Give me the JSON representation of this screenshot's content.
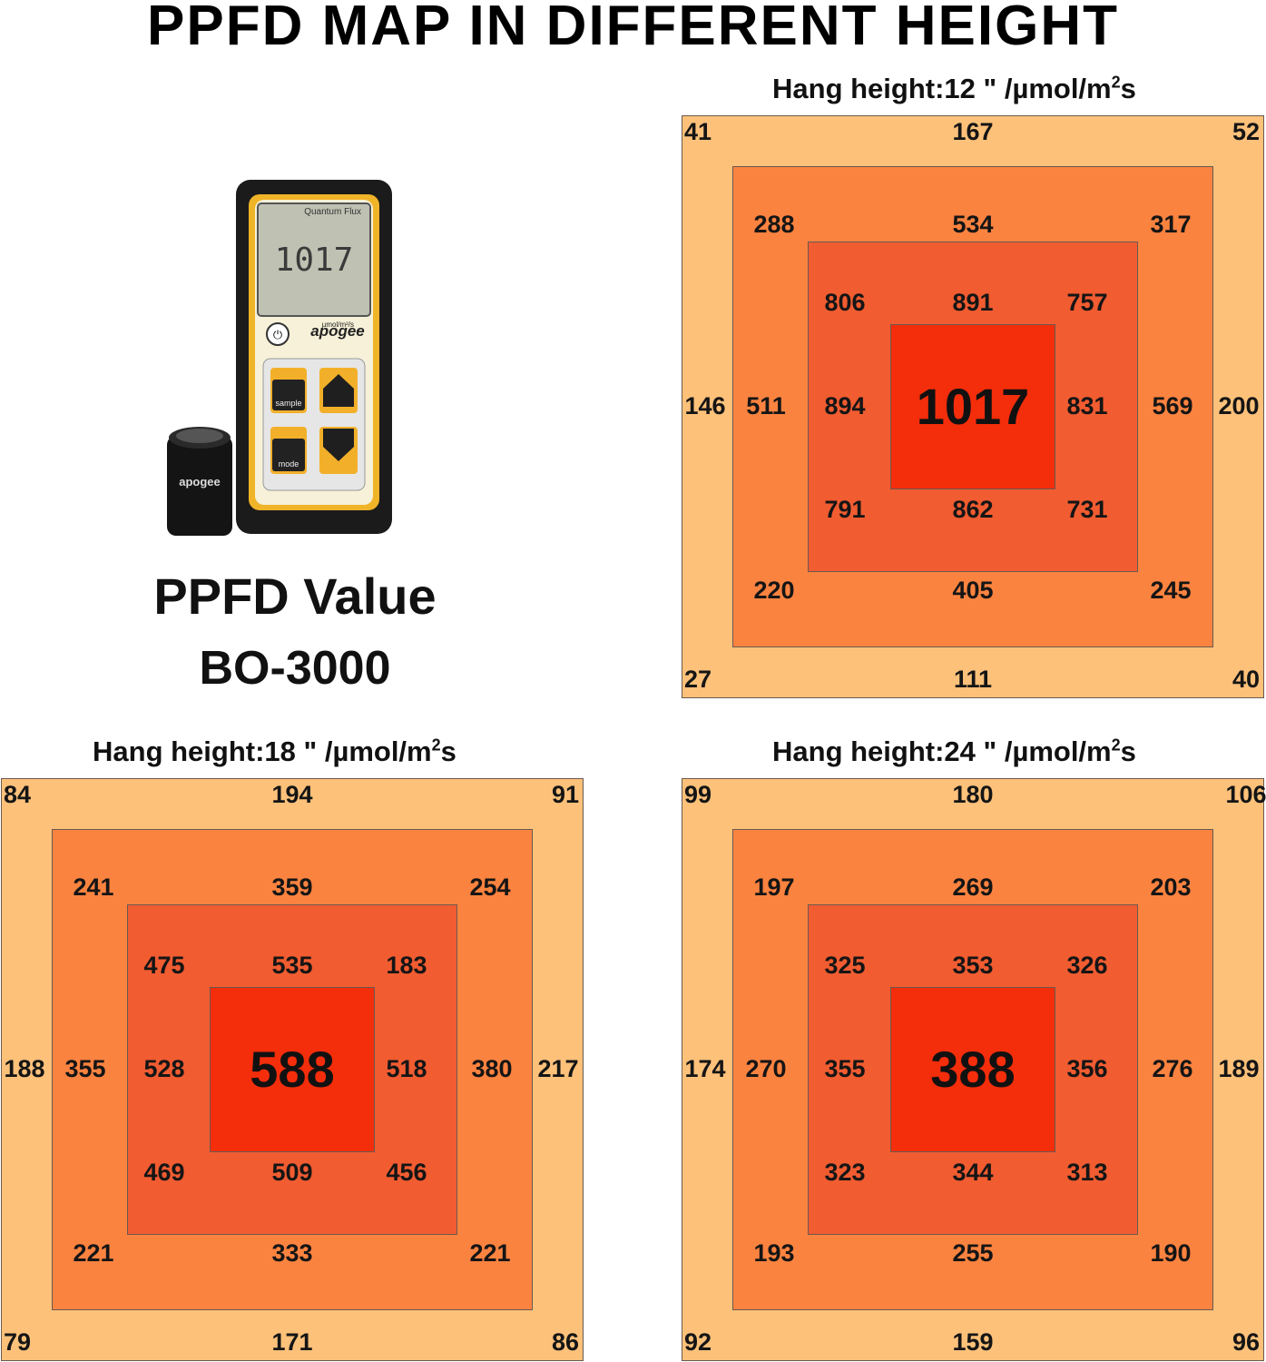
{
  "title": "PPFD MAP IN DIFFERENT HEIGHT",
  "meter": {
    "brand": "Quantum Flux",
    "reading": "1017",
    "unit_label": "µmol/m²/s",
    "logo": "apogee",
    "button_sample": "sample",
    "button_mode": "mode",
    "caption_line1": "PPFD Value",
    "caption_line2": "BO-3000"
  },
  "colors": {
    "ring1": "#FDC17A",
    "ring2": "#FB8340",
    "ring3": "#F15C31",
    "ring4": "#F42D0B"
  },
  "chart_data": [
    {
      "type": "heatmap",
      "title_prefix": "Hang height:",
      "height": "12 \"",
      "unit_prefix": "/µmol/m",
      "unit_exp": "2",
      "unit_suffix": "s",
      "center": "1017",
      "ring1": [
        "41",
        "167",
        "52",
        "146",
        "200",
        "27",
        "111",
        "40"
      ],
      "ring2": [
        "288",
        "534",
        "317",
        "511",
        "569",
        "220",
        "405",
        "245"
      ],
      "ring3": [
        "806",
        "891",
        "757",
        "894",
        "831",
        "791",
        "862",
        "731"
      ]
    },
    {
      "type": "heatmap",
      "title_prefix": "Hang height:",
      "height": "18 \"",
      "unit_prefix": "/µmol/m",
      "unit_exp": "2",
      "unit_suffix": "s",
      "center": "588",
      "ring1": [
        "84",
        "194",
        "91",
        "188",
        "217",
        "79",
        "171",
        "86"
      ],
      "ring2": [
        "241",
        "359",
        "254",
        "355",
        "380",
        "221",
        "333",
        "221"
      ],
      "ring3": [
        "475",
        "535",
        "183",
        "528",
        "518",
        "469",
        "509",
        "456"
      ]
    },
    {
      "type": "heatmap",
      "title_prefix": "Hang height:",
      "height": "24 \"",
      "unit_prefix": "/µmol/m",
      "unit_exp": "2",
      "unit_suffix": "s",
      "center": "388",
      "ring1": [
        "99",
        "180",
        "106",
        "174",
        "189",
        "92",
        "159",
        "96"
      ],
      "ring2": [
        "197",
        "269",
        "203",
        "270",
        "276",
        "193",
        "255",
        "190"
      ],
      "ring3": [
        "325",
        "353",
        "326",
        "355",
        "356",
        "323",
        "344",
        "313"
      ]
    }
  ]
}
